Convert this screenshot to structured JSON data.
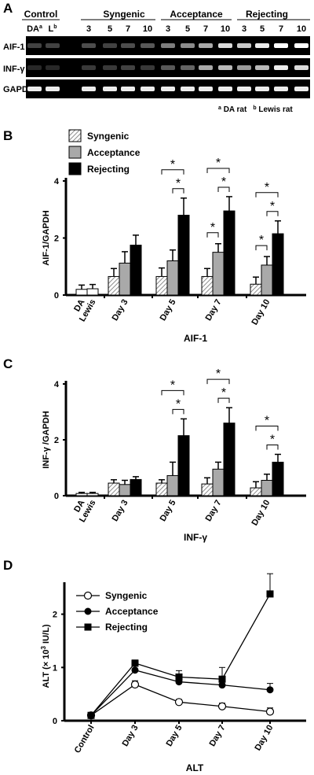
{
  "panels": {
    "a": {
      "letter": "A",
      "groups": [
        {
          "label": "Control",
          "lanes": [
            "DA",
            "L"
          ],
          "lane_sup": [
            "a",
            "b"
          ]
        },
        {
          "label": "Syngenic",
          "lanes": [
            "3",
            "5",
            "7",
            "10"
          ]
        },
        {
          "label": "Acceptance",
          "lanes": [
            "3",
            "5",
            "7",
            "10"
          ]
        },
        {
          "label": "Rejecting",
          "lanes": [
            "3",
            "5",
            "7",
            "10"
          ]
        }
      ],
      "rows": [
        "AIF-1",
        "INF-γ",
        "GAPDH"
      ],
      "band_intensity": {
        "AIF-1": [
          0.35,
          0.35,
          0.4,
          0.35,
          0.4,
          0.45,
          0.6,
          0.65,
          0.75,
          0.9,
          0.85,
          0.95,
          1.0,
          1.0
        ],
        "INF-γ": [
          0.2,
          0.2,
          0.3,
          0.3,
          0.35,
          0.3,
          0.45,
          0.5,
          0.75,
          0.8,
          0.7,
          0.8,
          0.95,
          0.9
        ],
        "GAPDH": [
          0.95,
          0.95,
          0.95,
          0.95,
          0.95,
          0.95,
          0.95,
          0.95,
          0.95,
          0.95,
          0.95,
          0.95,
          0.95,
          0.95
        ]
      },
      "footnote": {
        "a_sup": "a",
        "a_text": "DA rat",
        "b_sup": "b",
        "b_text": "Lewis rat"
      }
    },
    "b": {
      "letter": "B"
    },
    "c": {
      "letter": "C"
    },
    "d": {
      "letter": "D"
    }
  },
  "legend": {
    "syngenic": "Syngenic",
    "acceptance": "Acceptance",
    "rejecting": "Rejecting"
  },
  "colors": {
    "syngenic": "#dedede",
    "acceptance": "#a9a9a9",
    "rejecting": "#000000",
    "control": "#ffffff",
    "gel_bg": "#000000",
    "band": "#ffffff"
  },
  "significance_marker": "*",
  "chart_data": [
    {
      "type": "bar",
      "title": "AIF-1",
      "xlabel": "AIF-1",
      "ylabel": "AIF-1/GAPDH",
      "ylim": [
        0,
        4
      ],
      "yticks": [
        "0",
        "2",
        "4"
      ],
      "control": {
        "categories": [
          "DA",
          "Lewis"
        ],
        "values": [
          0.2,
          0.22
        ],
        "errors": [
          0.15,
          0.15
        ]
      },
      "categories": [
        "Day 3",
        "Day 5",
        "Day 7",
        "Day 10"
      ],
      "series": [
        {
          "name": "Syngenic",
          "values": [
            0.65,
            0.65,
            0.65,
            0.38
          ],
          "errors": [
            0.28,
            0.3,
            0.28,
            0.25
          ]
        },
        {
          "name": "Acceptance",
          "values": [
            1.12,
            1.2,
            1.5,
            1.05
          ],
          "errors": [
            0.4,
            0.38,
            0.3,
            0.3
          ]
        },
        {
          "name": "Rejecting",
          "values": [
            1.75,
            2.8,
            2.95,
            2.15
          ],
          "errors": [
            0.35,
            0.6,
            0.5,
            0.45
          ]
        }
      ],
      "significance": [
        {
          "day": "Day 5",
          "pairs": [
            [
              "Syngenic",
              "Rejecting"
            ],
            [
              "Acceptance",
              "Rejecting"
            ]
          ]
        },
        {
          "day": "Day 7",
          "pairs": [
            [
              "Syngenic",
              "Rejecting"
            ],
            [
              "Acceptance",
              "Rejecting"
            ],
            [
              "Syngenic",
              "Acceptance"
            ]
          ]
        },
        {
          "day": "Day 10",
          "pairs": [
            [
              "Syngenic",
              "Rejecting"
            ],
            [
              "Acceptance",
              "Rejecting"
            ],
            [
              "Syngenic",
              "Acceptance"
            ]
          ]
        }
      ]
    },
    {
      "type": "bar",
      "title": "INF-γ",
      "xlabel": "INF-γ",
      "ylabel": "INF-γ /GAPDH",
      "ylim": [
        0,
        4
      ],
      "yticks": [
        "0",
        "2",
        "4"
      ],
      "control": {
        "categories": [
          "DA",
          "Lewis"
        ],
        "values": [
          0.08,
          0.08
        ],
        "errors": [
          0.04,
          0.04
        ]
      },
      "categories": [
        "Day 3",
        "Day 5",
        "Day 7",
        "Day 10"
      ],
      "series": [
        {
          "name": "Syngenic",
          "values": [
            0.45,
            0.45,
            0.42,
            0.28
          ],
          "errors": [
            0.12,
            0.12,
            0.22,
            0.22
          ]
        },
        {
          "name": "Acceptance",
          "values": [
            0.4,
            0.72,
            0.95,
            0.55
          ],
          "errors": [
            0.15,
            0.48,
            0.25,
            0.22
          ]
        },
        {
          "name": "Rejecting",
          "values": [
            0.58,
            2.15,
            2.6,
            1.2
          ],
          "errors": [
            0.1,
            0.6,
            0.55,
            0.28
          ]
        }
      ],
      "significance": [
        {
          "day": "Day 5",
          "pairs": [
            [
              "Syngenic",
              "Rejecting"
            ],
            [
              "Acceptance",
              "Rejecting"
            ]
          ]
        },
        {
          "day": "Day 7",
          "pairs": [
            [
              "Syngenic",
              "Rejecting"
            ],
            [
              "Acceptance",
              "Rejecting"
            ]
          ]
        },
        {
          "day": "Day 10",
          "pairs": [
            [
              "Syngenic",
              "Rejecting"
            ],
            [
              "Acceptance",
              "Rejecting"
            ]
          ]
        }
      ]
    },
    {
      "type": "line",
      "title": "ALT",
      "xlabel": "ALT",
      "ylabel_pre": "ALT (",
      "ylabel_times": "×",
      "ylabel_base": " 10",
      "ylabel_exp": "3",
      "ylabel_post": " IU/L)",
      "ylim": [
        0,
        2.6
      ],
      "yticks": [
        "0",
        "1",
        "2"
      ],
      "categories": [
        "Control",
        "Day 3",
        "Day 5",
        "Day 7",
        "Day 10"
      ],
      "series": [
        {
          "name": "Syngenic",
          "marker": "open-circle",
          "values": [
            0.1,
            0.68,
            0.35,
            0.27,
            0.17
          ],
          "errors": [
            0.05,
            0.07,
            0.05,
            0.06,
            0.07
          ]
        },
        {
          "name": "Acceptance",
          "marker": "filled-circle",
          "values": [
            0.1,
            0.95,
            0.73,
            0.67,
            0.58
          ],
          "errors": [
            0.05,
            0.08,
            0.09,
            0.07,
            0.12
          ]
        },
        {
          "name": "Rejecting",
          "marker": "filled-square",
          "values": [
            0.1,
            1.08,
            0.82,
            0.78,
            2.38
          ],
          "errors": [
            0.05,
            0.06,
            0.12,
            0.22,
            0.38
          ]
        }
      ]
    }
  ]
}
